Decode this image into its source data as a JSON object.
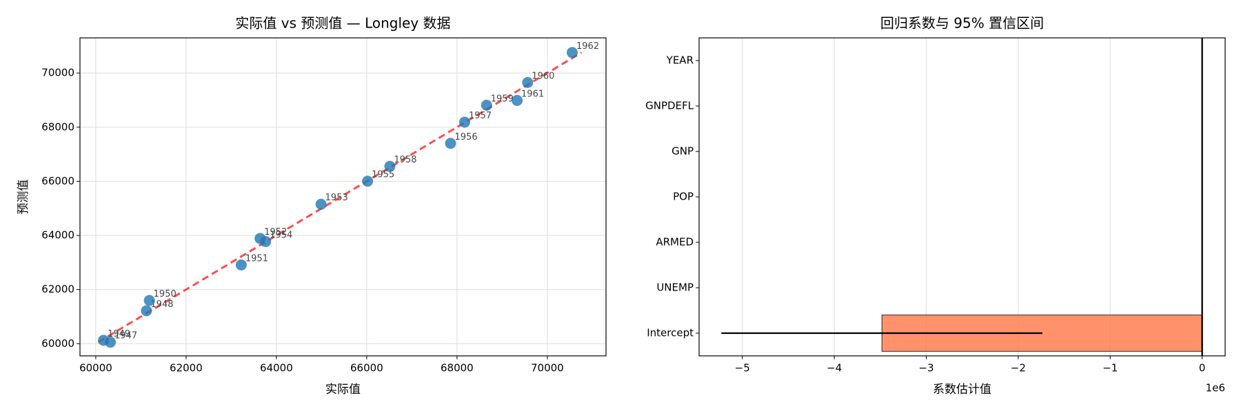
{
  "chart_data": [
    {
      "type": "scatter",
      "title": "实际值 vs 预测值 — Longley 数据",
      "x_label": "实际值",
      "y_label": "预测值",
      "point_labels": [
        "1947",
        "1948",
        "1949",
        "1950",
        "1951",
        "1952",
        "1953",
        "1954",
        "1955",
        "1956",
        "1957",
        "1958",
        "1959",
        "1960",
        "1961",
        "1962"
      ],
      "x": [
        60323,
        61122,
        60171,
        61187,
        63221,
        63639,
        64989,
        63761,
        66019,
        67857,
        68169,
        66513,
        68655,
        69564,
        69331,
        70551
      ],
      "values": [
        60056,
        61216,
        60125,
        61597,
        62911,
        63888,
        65153,
        63774,
        66005,
        67402,
        68186,
        66552,
        68811,
        69650,
        68989,
        70758
      ],
      "color": "#1f77b4",
      "line_color": "#ff0000",
      "xlim": [
        59650,
        71300
      ],
      "xticks": [
        60000,
        62000,
        64000,
        66000,
        68000,
        70000
      ],
      "ylim": [
        59550,
        71300
      ],
      "yticks": [
        60000,
        62000,
        64000,
        66000,
        68000,
        70000
      ],
      "grid": true
    },
    {
      "type": "hbar",
      "title": "回归系数与 95% 置信区间",
      "x_label": "系数估计值",
      "x_offset_label": "1e6",
      "categories": [
        "Intercept",
        "UNEMP",
        "ARMED",
        "POP",
        "GNP",
        "GNPDEFL",
        "YEAR"
      ],
      "values": [
        -3482259,
        -2.02,
        -1.03,
        -0.051,
        -0.036,
        15.06,
        1829.15
      ],
      "errors": [
        1745200,
        0.95,
        0.42,
        0.44,
        0.13,
        170,
        893
      ],
      "color": "#ff7f50",
      "xlim": [
        -5470000,
        250000
      ],
      "xticks": [
        {
          "value": -5000000,
          "label": "−5"
        },
        {
          "value": -4000000,
          "label": "−4"
        },
        {
          "value": -3000000,
          "label": "−3"
        },
        {
          "value": -2000000,
          "label": "−2"
        },
        {
          "value": -1000000,
          "label": "−1"
        },
        {
          "value": 0,
          "label": "0"
        }
      ],
      "grid": true
    }
  ]
}
